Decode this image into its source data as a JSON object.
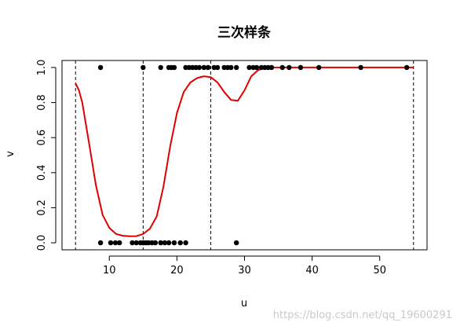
{
  "chart_data": {
    "type": "scatter",
    "title": "三次样条",
    "xlabel": "u",
    "ylabel": "v",
    "xlim": [
      3,
      57
    ],
    "ylim": [
      -0.04,
      1.04
    ],
    "x_ticks": [
      10,
      20,
      30,
      40,
      50
    ],
    "y_ticks": [
      0.0,
      0.2,
      0.4,
      0.6,
      0.8,
      1.0
    ],
    "y_tick_labels": [
      "0.0",
      "0.2",
      "0.4",
      "0.6",
      "0.8",
      "1.0"
    ],
    "grid": false,
    "knots": [
      5,
      15,
      25,
      55
    ],
    "points": [
      [
        8.7,
        1
      ],
      [
        15.0,
        1
      ],
      [
        17.6,
        1
      ],
      [
        18.8,
        1
      ],
      [
        19.2,
        1
      ],
      [
        19.6,
        1
      ],
      [
        21.3,
        1
      ],
      [
        21.8,
        1
      ],
      [
        22.3,
        1
      ],
      [
        22.8,
        1
      ],
      [
        23.3,
        1
      ],
      [
        24.0,
        1
      ],
      [
        24.6,
        1
      ],
      [
        25.5,
        1
      ],
      [
        26.0,
        1
      ],
      [
        27.0,
        1
      ],
      [
        27.5,
        1
      ],
      [
        28.0,
        1
      ],
      [
        28.8,
        1
      ],
      [
        30.7,
        1
      ],
      [
        31.3,
        1
      ],
      [
        31.8,
        1
      ],
      [
        32.5,
        1
      ],
      [
        33.0,
        1
      ],
      [
        33.5,
        1
      ],
      [
        34.0,
        1
      ],
      [
        35.6,
        1
      ],
      [
        36.6,
        1
      ],
      [
        38.3,
        1
      ],
      [
        41.0,
        1
      ],
      [
        47.2,
        1
      ],
      [
        54.0,
        1
      ],
      [
        8.7,
        0
      ],
      [
        10.2,
        0
      ],
      [
        10.9,
        0
      ],
      [
        11.5,
        0
      ],
      [
        13.4,
        0
      ],
      [
        14.0,
        0
      ],
      [
        14.6,
        0
      ],
      [
        15.0,
        0
      ],
      [
        15.4,
        0
      ],
      [
        15.8,
        0
      ],
      [
        16.3,
        0
      ],
      [
        16.8,
        0
      ],
      [
        17.6,
        0
      ],
      [
        18.2,
        0
      ],
      [
        18.8,
        0
      ],
      [
        19.6,
        0
      ],
      [
        20.5,
        0
      ],
      [
        21.3,
        0
      ],
      [
        28.8,
        0
      ]
    ],
    "series": [
      {
        "x": [
          5,
          5.5,
          6,
          7,
          8,
          9,
          10,
          11,
          12,
          13,
          14,
          15,
          16,
          17,
          18,
          19,
          20,
          21,
          22,
          23,
          24,
          25,
          26,
          27,
          28,
          29,
          30,
          31,
          32,
          33,
          34,
          36,
          40,
          45,
          50,
          55
        ],
        "y": [
          0.91,
          0.87,
          0.8,
          0.57,
          0.33,
          0.16,
          0.085,
          0.05,
          0.04,
          0.037,
          0.038,
          0.05,
          0.08,
          0.15,
          0.32,
          0.55,
          0.74,
          0.86,
          0.915,
          0.94,
          0.95,
          0.945,
          0.915,
          0.86,
          0.815,
          0.81,
          0.87,
          0.95,
          0.985,
          0.998,
          1.0,
          1.0,
          1.0,
          1.0,
          1.0,
          1.0
        ]
      }
    ]
  },
  "colors": {
    "curve": "#e00000",
    "points": "#000000",
    "knot_lines": "#000000",
    "axes": "#000000"
  },
  "watermark": "https://blog.csdn.net/qq_19600291"
}
